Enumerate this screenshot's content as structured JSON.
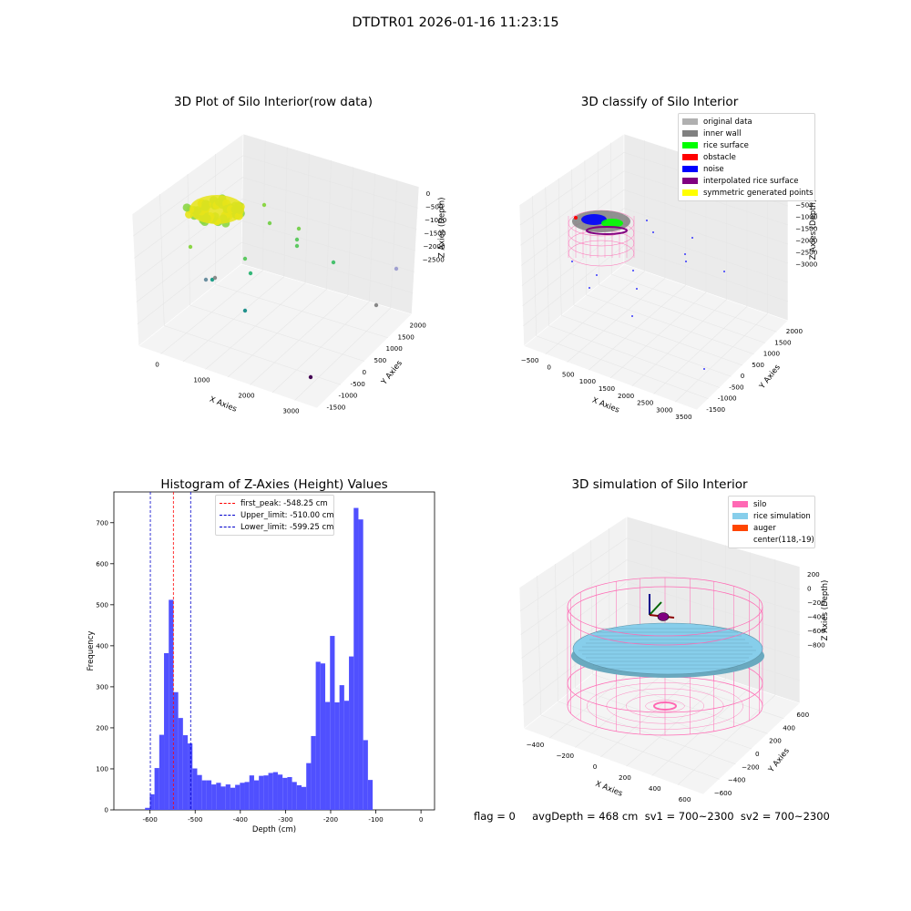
{
  "figure": {
    "suptitle": "DTDTR01 2026-01-16 11:23:15",
    "status_line": "flag = 0     avgDepth = 468 cm  sv1 = 700~2300  sv2 = 700~2300"
  },
  "colors": {
    "raw_points": "#8bd646",
    "raw_points_top": "#e8e419",
    "histogram_bar": "#4c4cff",
    "first_peak_line": "#ff0000",
    "limit_lines": "#0000cc",
    "silo_wire": "#ff69b4",
    "rice": "#87ceeb",
    "auger": "#ff4500"
  },
  "chart_data": [
    {
      "type": "scatter3d",
      "title": "3D Plot of Silo Interior(row data)",
      "xlabel": "X Axies",
      "ylabel": "Y Axies",
      "zlabel": "Z Axies (Depth)",
      "x_ticks": [
        "0",
        "1000",
        "2000",
        "3000"
      ],
      "y_ticks": [
        "-1500",
        "-1000",
        "-500",
        "0",
        "500",
        "1000",
        "1500",
        "2000"
      ],
      "z_ticks": [
        "0",
        "−500",
        "−1000",
        "−1500",
        "−2000",
        "−2500"
      ],
      "xlim": [
        -500,
        3500
      ],
      "ylim": [
        -1800,
        2200
      ],
      "zlim": [
        -2900,
        200
      ],
      "grid": true,
      "colormap": "viridis"
    },
    {
      "type": "scatter3d",
      "title": "3D classify of Silo Interior",
      "xlabel": "X Axies",
      "ylabel": "Y Axies",
      "zlabel": "Z Axies (Depth)",
      "x_ticks": [
        "−500",
        "0",
        "500",
        "1000",
        "1500",
        "2000",
        "2500",
        "3000",
        "3500"
      ],
      "y_ticks": [
        "-1500",
        "-1000",
        "-500",
        "0",
        "500",
        "1000",
        "1500",
        "2000"
      ],
      "z_ticks": [
        "0",
        "−500",
        "−1000",
        "−1500",
        "−2000",
        "−2500",
        "−3000"
      ],
      "xlim": [
        -500,
        3500
      ],
      "ylim": [
        -1800,
        2200
      ],
      "zlim": [
        -3200,
        200
      ],
      "grid": true,
      "legend_position": "top-right",
      "legend": [
        {
          "label": "original data",
          "color": "#b0b0b0"
        },
        {
          "label": "inner wall",
          "color": "#808080"
        },
        {
          "label": "rice surface",
          "color": "#00ff00"
        },
        {
          "label": "obstacle",
          "color": "#ff0000"
        },
        {
          "label": "noise",
          "color": "#0000ff"
        },
        {
          "label": "interpolated rice surface",
          "color": "#800080"
        },
        {
          "label": "symmetric generated points",
          "color": "#ffff00"
        }
      ]
    },
    {
      "type": "bar",
      "title": "Histogram of Z-Axies (Height) Values",
      "xlabel": "Depth (cm)",
      "ylabel": "Frequency",
      "xlim": [
        -680,
        30
      ],
      "ylim": [
        0,
        775
      ],
      "x_ticks": [
        "-600",
        "-500",
        "-400",
        "-300",
        "-200",
        "-100",
        "0"
      ],
      "y_ticks": [
        "0",
        "100",
        "200",
        "300",
        "400",
        "500",
        "600",
        "700"
      ],
      "bin_width": 10.5,
      "bin_start": -611,
      "values": [
        5,
        38,
        102,
        183,
        382,
        512,
        287,
        224,
        182,
        162,
        101,
        85,
        72,
        72,
        62,
        66,
        57,
        62,
        54,
        61,
        66,
        68,
        84,
        72,
        83,
        84,
        90,
        92,
        86,
        78,
        80,
        68,
        60,
        56,
        114,
        180,
        361,
        357,
        263,
        424,
        262,
        304,
        266,
        374,
        736,
        708,
        170,
        73
      ],
      "lines": [
        {
          "label": "first_peak: -548.25 cm",
          "x": -548.25,
          "color": "#ff0000"
        },
        {
          "label": "Upper_limit: -510.00 cm",
          "x": -510.0,
          "color": "#0000cc"
        },
        {
          "label": "Lower_limit: -599.25 cm",
          "x": -599.25,
          "color": "#0000cc"
        }
      ],
      "legend_position": "top-center"
    },
    {
      "type": "surface3d",
      "title": "3D simulation of Silo Interior",
      "xlabel": "X Axies",
      "ylabel": "Y Axies",
      "zlabel": "Z Axies (Depth)",
      "x_ticks": [
        "−400",
        "−200",
        "0",
        "200",
        "400",
        "600"
      ],
      "y_ticks": [
        "−600",
        "−400",
        "−200",
        "0",
        "200",
        "400",
        "600"
      ],
      "z_ticks": [
        "200",
        "0",
        "−200",
        "−400",
        "−600",
        "−800"
      ],
      "grid": true,
      "legend_position": "top-right",
      "legend": [
        {
          "label": "silo",
          "color": "#ff69b4"
        },
        {
          "label": "rice simulation",
          "color": "#87ceeb"
        },
        {
          "label": "auger",
          "color": "#ff4500"
        },
        {
          "label": "center(118,-19)",
          "color": ""
        }
      ]
    }
  ]
}
